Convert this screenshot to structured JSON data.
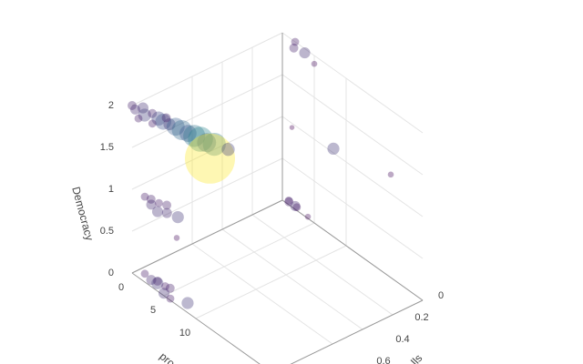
{
  "chart_data": {
    "type": "scatter3d",
    "xaxis_title": "pro",
    "yaxis_title": "lls",
    "zaxis_title": "Democracy",
    "xlim": [
      0,
      22
    ],
    "ylim": [
      0,
      1
    ],
    "zlim": [
      0,
      2
    ],
    "xticks": [
      0,
      5,
      10
    ],
    "yticks": [
      0,
      0.2,
      0.4,
      0.6
    ],
    "zticks": [
      0,
      0.5,
      1,
      1.5,
      2
    ],
    "grid": true,
    "opacity": 0.35,
    "colorscale": [
      "#440154",
      "#3b528b",
      "#21918c",
      "#5ec962",
      "#fde725"
    ],
    "series": [
      {
        "x": [
          0,
          0.5,
          1,
          1.5,
          2,
          2.5,
          3,
          3.5,
          4,
          4.5,
          5,
          5.5,
          6,
          6.5,
          7,
          7.5,
          8,
          2,
          3,
          1,
          2,
          2.5,
          3,
          3.5,
          4,
          4.5,
          5,
          6,
          7,
          2,
          3,
          3.5,
          4,
          4.5,
          5,
          5.5,
          6,
          8,
          1,
          1.5,
          2,
          2.5,
          4,
          1.5,
          8,
          17,
          2,
          2.5,
          3.5,
          5
        ],
        "y": [
          1,
          1,
          0.97,
          0.98,
          0.95,
          0.93,
          0.92,
          0.9,
          0.88,
          0.86,
          0.84,
          0.82,
          0.8,
          0.78,
          0.75,
          0.8,
          0.7,
          0.95,
          0.9,
          1,
          1,
          0.98,
          1,
          0.97,
          1,
          0.96,
          0.98,
          0.95,
          1,
          1,
          1,
          0.98,
          1,
          0.97,
          1,
          0.98,
          1,
          0.97,
          0,
          0.02,
          0,
          0.01,
          0,
          0,
          0,
          0,
          0,
          0.03,
          0,
          0
        ],
        "z": [
          2,
          1.98,
          2,
          1.95,
          1.97,
          1.92,
          1.9,
          1.88,
          1.86,
          1.83,
          1.8,
          1.78,
          1.75,
          1.72,
          1.7,
          1.6,
          1.65,
          1.85,
          1.93,
          1.9,
          1.02,
          1,
          0.98,
          1,
          0.95,
          1.02,
          0.97,
          0.95,
          0.8,
          0.1,
          0.08,
          0.05,
          0.12,
          0.06,
          0.03,
          0.1,
          0.02,
          0.05,
          0.05,
          0.08,
          0.04,
          0.06,
          0.02,
          0.95,
          1.05,
          1.23,
          2,
          1.98,
          1.95,
          1.9
        ],
        "size": [
          9,
          10,
          11,
          13,
          9,
          14,
          16,
          12,
          18,
          20,
          17,
          22,
          25,
          19,
          23,
          50,
          13,
          8,
          9,
          8,
          8,
          9,
          10,
          8,
          11,
          9,
          10,
          12,
          6,
          8,
          10,
          12,
          9,
          8,
          11,
          9,
          8,
          12,
          8,
          9,
          10,
          8,
          6,
          5,
          12,
          6,
          8,
          9,
          11,
          6
        ]
      }
    ]
  }
}
